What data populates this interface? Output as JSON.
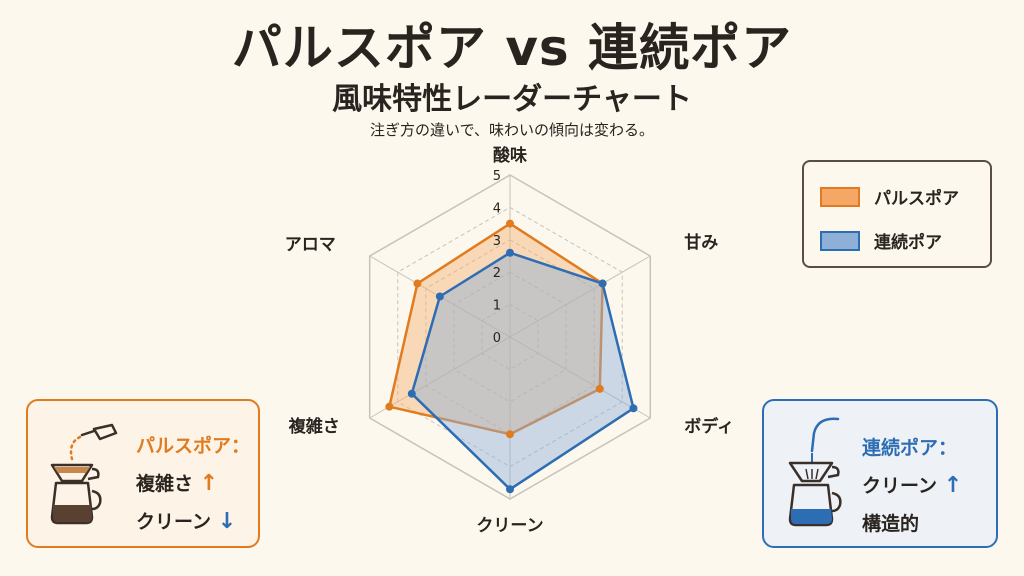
{
  "title": "パルスポア vs 連続ポア",
  "subtitle": "風味特性レーダーチャート",
  "caption": "注ぎ方の違いで、味わいの傾向は変わる。",
  "colors": {
    "pulse": "#e07b20",
    "pulse_fill": "#f2b273",
    "continuous": "#2d6db3",
    "continuous_fill": "#8fb0d6",
    "grid": "#c8c2b8"
  },
  "legend": {
    "items": [
      {
        "label": "パルスポア",
        "color": "#e07b20",
        "fill": "#f5a865"
      },
      {
        "label": "連続ポア",
        "color": "#2d6db3",
        "fill": "#8fb0d6"
      }
    ]
  },
  "chart_data": {
    "type": "radar",
    "axes": [
      "酸味",
      "甘み",
      "ボディ",
      "クリーン",
      "複雑さ",
      "アロマ"
    ],
    "rmax": 5,
    "tick_labels": [
      "0",
      "1",
      "2",
      "3",
      "4",
      "5"
    ],
    "series": [
      {
        "name": "パルスポア",
        "values": [
          3.5,
          3.3,
          3.2,
          3.0,
          4.3,
          3.3
        ]
      },
      {
        "name": "連続ポア",
        "values": [
          2.6,
          3.3,
          4.4,
          4.7,
          3.5,
          2.5
        ]
      }
    ],
    "grid": true,
    "legend_position": "top-right"
  },
  "cards": {
    "pulse": {
      "heading": "パルスポア：",
      "line1": "複雑さ",
      "line1_arrow": "↑",
      "line2": "クリーン",
      "line2_arrow": "↓",
      "icon": "kettle-dripper-icon"
    },
    "continuous": {
      "heading": "連続ポア：",
      "line1": "クリーン",
      "line1_arrow": "↑",
      "line2": "構造的",
      "icon": "kettle-dripper-icon"
    }
  }
}
